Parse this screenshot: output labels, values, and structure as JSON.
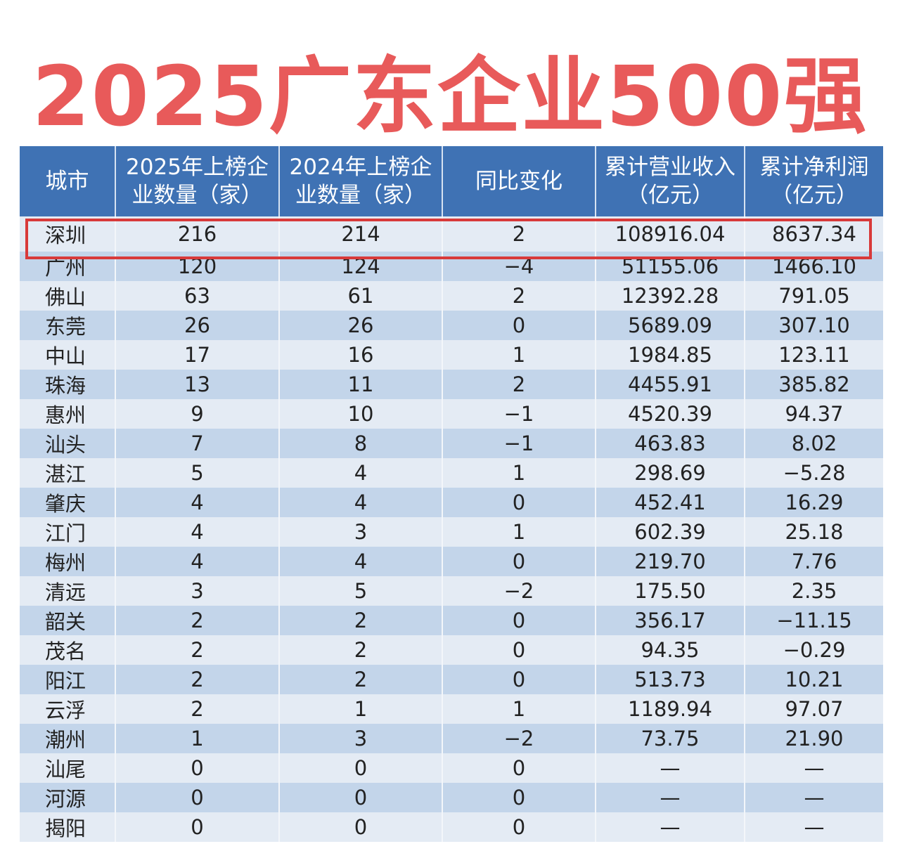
{
  "title": "2025广东企业500强",
  "colors": {
    "title": "#e85a5a",
    "header_bg": "#3f72b4",
    "row_light": "#e4ebf4",
    "row_dark": "#c3d5ea",
    "highlight_border": "#d83a3a"
  },
  "table": {
    "headers": [
      "城市",
      "2025年上榜企\n业数量（家）",
      "2024年上榜企\n业数量（家）",
      "同比变化",
      "累计营业收入\n（亿元）",
      "累计净利润\n（亿元）"
    ],
    "highlighted_row": 0,
    "rows": [
      [
        "深圳",
        "216",
        "214",
        "2",
        "108916.04",
        "8637.34"
      ],
      [
        "广州",
        "120",
        "124",
        "−4",
        "51155.06",
        "1466.10"
      ],
      [
        "佛山",
        "63",
        "61",
        "2",
        "12392.28",
        "791.05"
      ],
      [
        "东莞",
        "26",
        "26",
        "0",
        "5689.09",
        "307.10"
      ],
      [
        "中山",
        "17",
        "16",
        "1",
        "1984.85",
        "123.11"
      ],
      [
        "珠海",
        "13",
        "11",
        "2",
        "4455.91",
        "385.82"
      ],
      [
        "惠州",
        "9",
        "10",
        "−1",
        "4520.39",
        "94.37"
      ],
      [
        "汕头",
        "7",
        "8",
        "−1",
        "463.83",
        "8.02"
      ],
      [
        "湛江",
        "5",
        "4",
        "1",
        "298.69",
        "−5.28"
      ],
      [
        "肇庆",
        "4",
        "4",
        "0",
        "452.41",
        "16.29"
      ],
      [
        "江门",
        "4",
        "3",
        "1",
        "602.39",
        "25.18"
      ],
      [
        "梅州",
        "4",
        "4",
        "0",
        "219.70",
        "7.76"
      ],
      [
        "清远",
        "3",
        "5",
        "−2",
        "175.50",
        "2.35"
      ],
      [
        "韶关",
        "2",
        "2",
        "0",
        "356.17",
        "−11.15"
      ],
      [
        "茂名",
        "2",
        "2",
        "0",
        "94.35",
        "−0.29"
      ],
      [
        "阳江",
        "2",
        "2",
        "0",
        "513.73",
        "10.21"
      ],
      [
        "云浮",
        "2",
        "1",
        "1",
        "1189.94",
        "97.07"
      ],
      [
        "潮州",
        "1",
        "3",
        "−2",
        "73.75",
        "21.90"
      ],
      [
        "汕尾",
        "0",
        "0",
        "0",
        "—",
        "—"
      ],
      [
        "河源",
        "0",
        "0",
        "0",
        "—",
        "—"
      ],
      [
        "揭阳",
        "0",
        "0",
        "0",
        "—",
        "—"
      ]
    ]
  }
}
